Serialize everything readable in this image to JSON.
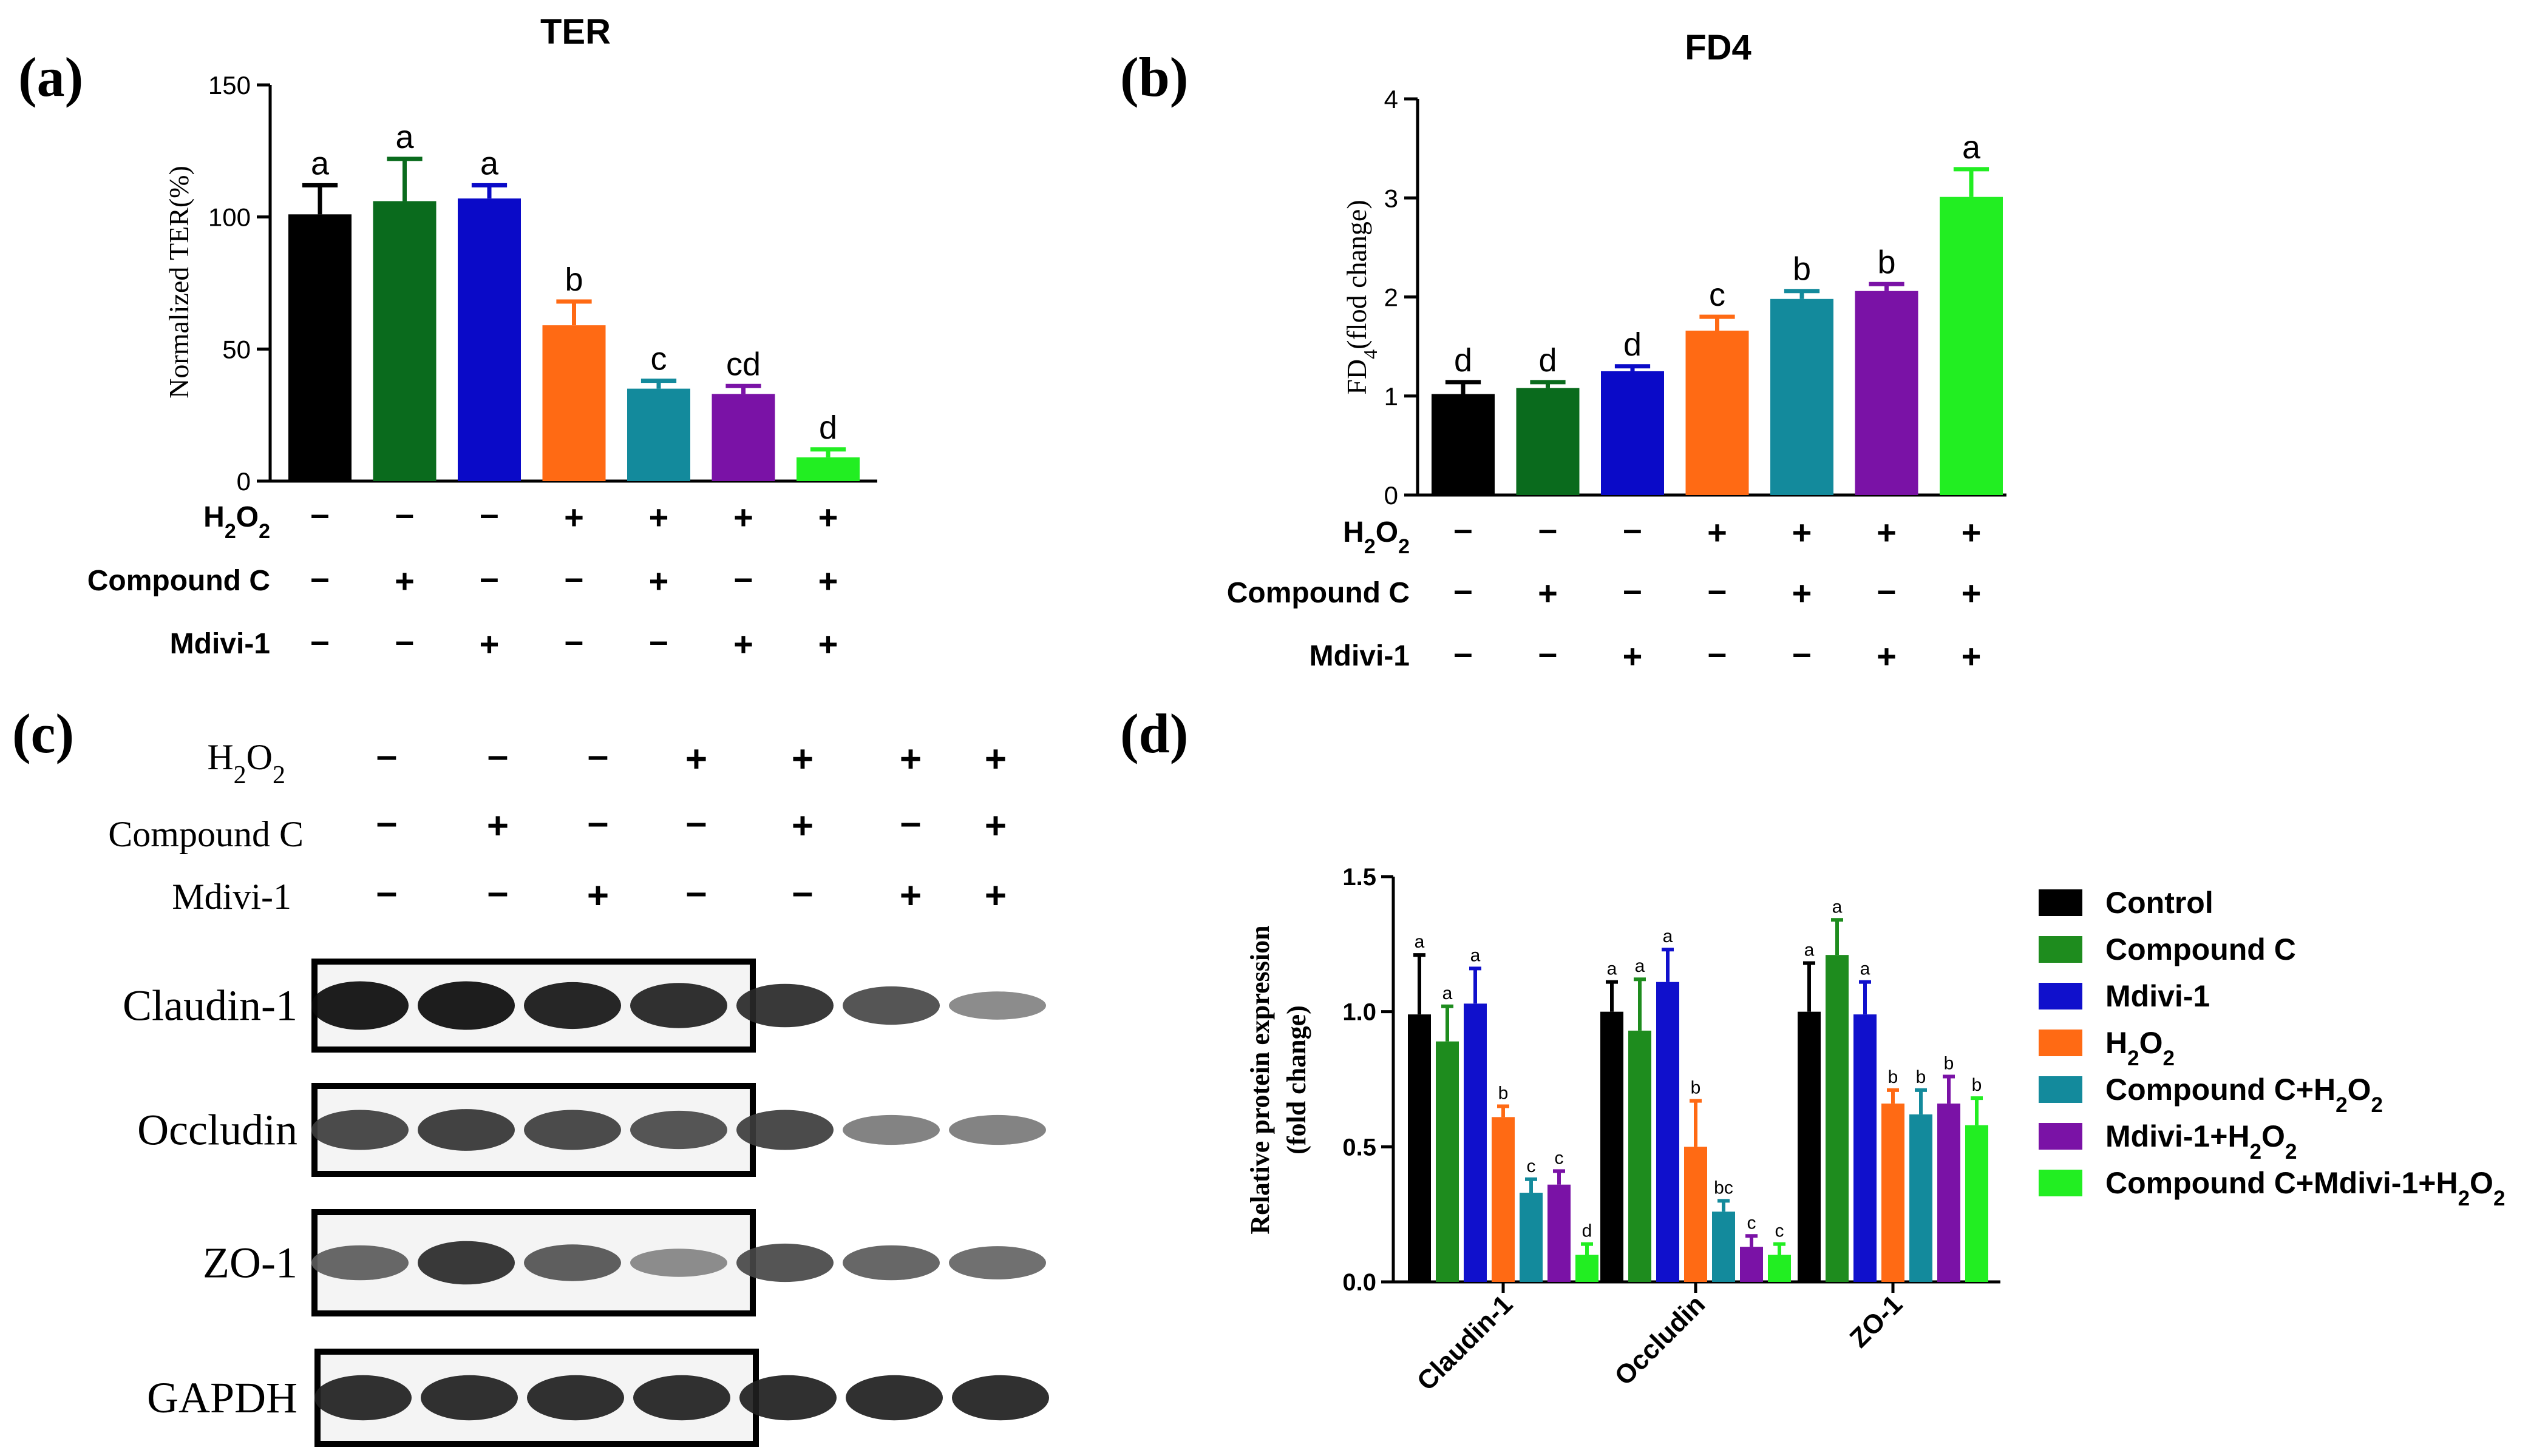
{
  "panels": {
    "a": {
      "letter": "(a)",
      "title": "TER"
    },
    "b": {
      "letter": "(b)",
      "title": "FD4"
    },
    "c": {
      "letter": "(c)"
    },
    "d": {
      "letter": "(d)"
    }
  },
  "treatment_labels": {
    "h2o2": {
      "base": "H",
      "sub1": "2",
      "mid": "O",
      "sub2": "2"
    },
    "compound_c": "Compound C",
    "mdivi": "Mdivi-1"
  },
  "signs": {
    "plus": "+",
    "minus": "–"
  },
  "treatments": {
    "h2o2": [
      false,
      false,
      false,
      true,
      true,
      true,
      true
    ],
    "compound_c": [
      false,
      true,
      false,
      false,
      true,
      false,
      true
    ],
    "mdivi": [
      false,
      false,
      true,
      false,
      false,
      true,
      true
    ]
  },
  "colors": {
    "groups": [
      "#000000",
      "#0a6b1d",
      "#0a0ac8",
      "#ff6a14",
      "#138a9c",
      "#7a12a6",
      "#22ee22"
    ],
    "groups_d": [
      "#000000",
      "#1e8c1e",
      "#1010cc",
      "#ff6a14",
      "#138a9c",
      "#7a12a6",
      "#22ee22"
    ]
  },
  "western_blot": {
    "bands": [
      {
        "label": "Claudin-1",
        "intensities": [
          1.0,
          1.0,
          0.95,
          0.9,
          0.85,
          0.7,
          0.4
        ]
      },
      {
        "label": "Occludin",
        "intensities": [
          0.75,
          0.8,
          0.75,
          0.7,
          0.75,
          0.45,
          0.45
        ]
      },
      {
        "label": "ZO-1",
        "intensities": [
          0.6,
          0.85,
          0.65,
          0.4,
          0.7,
          0.6,
          0.55
        ]
      },
      {
        "label": "GAPDH",
        "intensities": [
          0.9,
          0.9,
          0.9,
          0.9,
          0.9,
          0.9,
          0.9
        ]
      }
    ]
  },
  "chart_data": [
    {
      "id": "a",
      "type": "bar",
      "title": "TER",
      "ylabel": "Normalized TER(%)",
      "xlabel": "",
      "ylim": [
        0,
        150
      ],
      "yticks": [
        "0",
        "50",
        "100",
        "150"
      ],
      "values": [
        101,
        106,
        107,
        59,
        35,
        33,
        9
      ],
      "errors": [
        11,
        16,
        5,
        9,
        3,
        3,
        3
      ],
      "sig_labels": [
        "a",
        "a",
        "a",
        "b",
        "c",
        "cd",
        "d"
      ]
    },
    {
      "id": "b",
      "type": "bar",
      "title": "FD4",
      "ylabel": {
        "base": "FD",
        "sub": "4",
        "rest": "(flod change)"
      },
      "xlabel": "",
      "ylim": [
        0,
        4
      ],
      "yticks": [
        "0",
        "1",
        "2",
        "3",
        "4"
      ],
      "values": [
        1.02,
        1.08,
        1.25,
        1.66,
        1.98,
        2.06,
        3.01
      ],
      "errors": [
        0.12,
        0.06,
        0.05,
        0.14,
        0.08,
        0.07,
        0.28
      ],
      "sig_labels": [
        "d",
        "d",
        "d",
        "c",
        "b",
        "b",
        "a"
      ]
    },
    {
      "id": "d",
      "type": "bar",
      "title": "",
      "ylabel": [
        "Relative protein expression",
        "(fold change)"
      ],
      "xlabel": "",
      "ylim": [
        0,
        1.5
      ],
      "yticks": [
        "0.0",
        "0.5",
        "1.0",
        "1.5"
      ],
      "categories": [
        "Claudin-1",
        "Occludin",
        "ZO-1"
      ],
      "series": [
        {
          "name": "Control",
          "values": [
            0.99,
            1.0,
            1.0
          ],
          "errors": [
            0.22,
            0.11,
            0.18
          ],
          "sig": [
            "a",
            "a",
            "a"
          ]
        },
        {
          "name": "Compound C",
          "values": [
            0.89,
            0.93,
            1.21
          ],
          "errors": [
            0.13,
            0.19,
            0.13
          ],
          "sig": [
            "a",
            "a",
            "a"
          ]
        },
        {
          "name": "Mdivi-1",
          "values": [
            1.03,
            1.11,
            0.99
          ],
          "errors": [
            0.13,
            0.12,
            0.12
          ],
          "sig": [
            "a",
            "a",
            "a"
          ]
        },
        {
          "name": "H2O2",
          "values": [
            0.61,
            0.5,
            0.66
          ],
          "errors": [
            0.04,
            0.17,
            0.05
          ],
          "sig": [
            "b",
            "b",
            "b"
          ]
        },
        {
          "name": "Compound C+H2O2",
          "values": [
            0.33,
            0.26,
            0.62
          ],
          "errors": [
            0.05,
            0.04,
            0.09
          ],
          "sig": [
            "c",
            "bc",
            "b"
          ]
        },
        {
          "name": "Mdivi-1+H2O2",
          "values": [
            0.36,
            0.13,
            0.66
          ],
          "errors": [
            0.05,
            0.04,
            0.1
          ],
          "sig": [
            "c",
            "c",
            "b"
          ]
        },
        {
          "name": "Compound C+Mdivi-1+H2O2",
          "values": [
            0.1,
            0.1,
            0.58
          ],
          "errors": [
            0.04,
            0.04,
            0.1
          ],
          "sig": [
            "d",
            "c",
            "b"
          ]
        }
      ],
      "legend": [
        {
          "base": "Control"
        },
        {
          "base": "Compound C"
        },
        {
          "base": "Mdivi-1"
        },
        {
          "base": "H",
          "sub1": "2",
          "mid": "O",
          "sub2": "2"
        },
        {
          "base": "Compound C+H",
          "sub1": "2",
          "mid": "O",
          "sub2": "2"
        },
        {
          "base": "Mdivi-1+H",
          "sub1": "2",
          "mid": "O",
          "sub2": "2"
        },
        {
          "base": "Compound C+Mdivi-1+H",
          "sub1": "2",
          "mid": "O",
          "sub2": "2"
        }
      ]
    }
  ]
}
